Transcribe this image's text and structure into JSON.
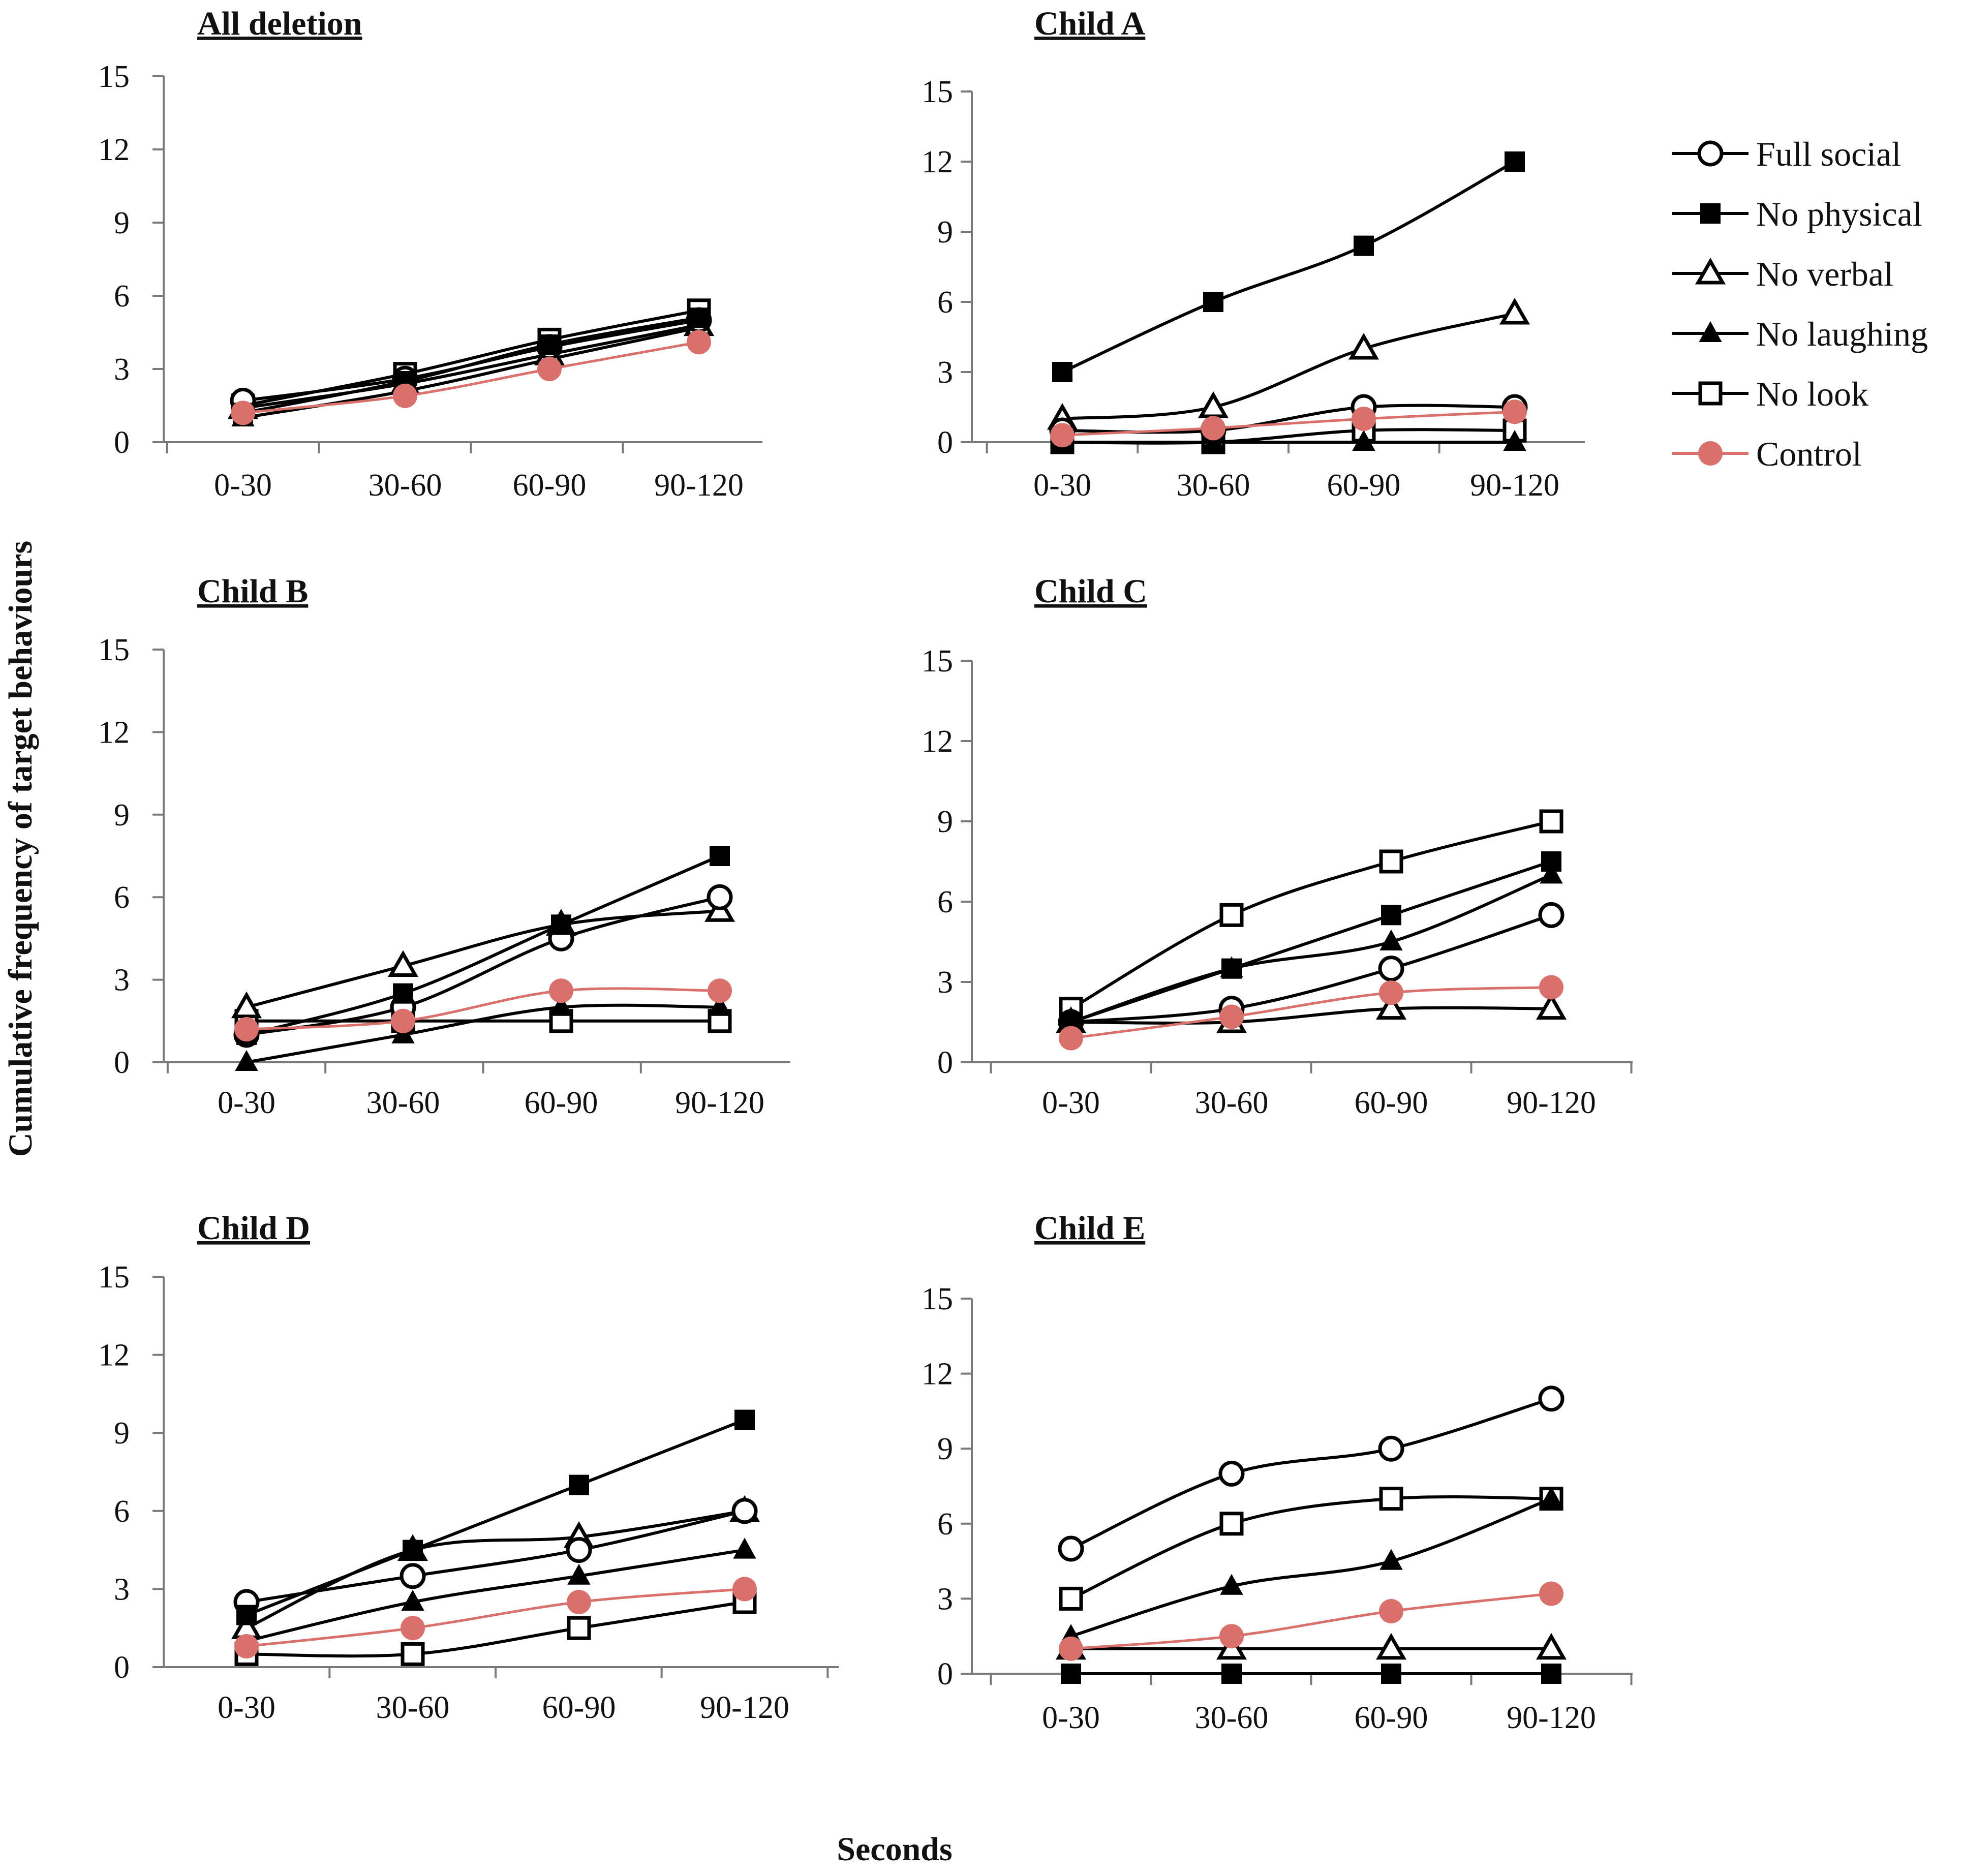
{
  "figure": {
    "ylabel": "Cumulative frequency of target behaviours",
    "xlabel": "Seconds"
  },
  "legend": [
    {
      "name": "Full social",
      "marker": "circle-open",
      "color": "#000000"
    },
    {
      "name": "No physical",
      "marker": "square-filled",
      "color": "#000000"
    },
    {
      "name": "No verbal",
      "marker": "triangle-open",
      "color": "#000000"
    },
    {
      "name": "No laughing",
      "marker": "triangle-filled",
      "color": "#000000"
    },
    {
      "name": "No look",
      "marker": "square-open",
      "color": "#000000"
    },
    {
      "name": "Control",
      "marker": "circle-filled",
      "color": "#d9706c"
    }
  ],
  "colors": {
    "line": "#000000",
    "control": "#d9706c",
    "axis": "#7a7a7a"
  },
  "chart_data": [
    {
      "type": "line",
      "title": "All deletion",
      "categories": [
        "0-30",
        "30-60",
        "60-90",
        "90-120"
      ],
      "yticks": [
        "0",
        "3",
        "6",
        "9",
        "12",
        "15"
      ],
      "ylim": [
        0,
        15
      ],
      "series": [
        {
          "name": "Full social",
          "values": [
            1.7,
            2.6,
            3.9,
            5.0
          ]
        },
        {
          "name": "No physical",
          "values": [
            1.2,
            2.5,
            4.0,
            5.1
          ]
        },
        {
          "name": "No verbal",
          "values": [
            1.4,
            2.4,
            3.6,
            4.8
          ]
        },
        {
          "name": "No laughing",
          "values": [
            1.0,
            2.1,
            3.4,
            4.7
          ]
        },
        {
          "name": "No look",
          "values": [
            1.5,
            2.8,
            4.2,
            5.4
          ]
        },
        {
          "name": "Control",
          "values": [
            1.2,
            1.9,
            3.0,
            4.1
          ]
        }
      ]
    },
    {
      "type": "line",
      "title": "Child A",
      "categories": [
        "0-30",
        "30-60",
        "60-90",
        "90-120"
      ],
      "yticks": [
        "0",
        "3",
        "6",
        "9",
        "12",
        "15"
      ],
      "ylim": [
        0,
        15
      ],
      "series": [
        {
          "name": "Full social",
          "values": [
            0.5,
            0.5,
            1.5,
            1.5
          ]
        },
        {
          "name": "No physical",
          "values": [
            3.0,
            6.0,
            8.4,
            12.0
          ]
        },
        {
          "name": "No verbal",
          "values": [
            1.0,
            1.5,
            4.0,
            5.5
          ]
        },
        {
          "name": "No laughing",
          "values": [
            0.0,
            0.0,
            0.0,
            0.0
          ]
        },
        {
          "name": "No look",
          "values": [
            0.0,
            0.0,
            0.5,
            0.5
          ]
        },
        {
          "name": "Control",
          "values": [
            0.3,
            0.6,
            1.0,
            1.3
          ]
        }
      ]
    },
    {
      "type": "line",
      "title": "Child B",
      "categories": [
        "0-30",
        "30-60",
        "60-90",
        "90-120"
      ],
      "yticks": [
        "0",
        "3",
        "6",
        "9",
        "12",
        "15"
      ],
      "ylim": [
        0,
        15
      ],
      "series": [
        {
          "name": "Full social",
          "values": [
            1.0,
            2.0,
            4.5,
            6.0
          ]
        },
        {
          "name": "No physical",
          "values": [
            1.0,
            2.5,
            5.0,
            7.5
          ]
        },
        {
          "name": "No verbal",
          "values": [
            2.0,
            3.5,
            5.0,
            5.5
          ]
        },
        {
          "name": "No laughing",
          "values": [
            0.0,
            1.0,
            2.0,
            2.0
          ]
        },
        {
          "name": "No look",
          "values": [
            1.5,
            1.5,
            1.5,
            1.5
          ]
        },
        {
          "name": "Control",
          "values": [
            1.2,
            1.5,
            2.6,
            2.6
          ]
        }
      ]
    },
    {
      "type": "line",
      "title": "Child C",
      "categories": [
        "0-30",
        "30-60",
        "60-90",
        "90-120"
      ],
      "yticks": [
        "0",
        "3",
        "6",
        "9",
        "12",
        "15"
      ],
      "ylim": [
        0,
        15
      ],
      "series": [
        {
          "name": "Full social",
          "values": [
            1.5,
            2.0,
            3.5,
            5.5
          ]
        },
        {
          "name": "No physical",
          "values": [
            1.5,
            3.5,
            5.5,
            7.5
          ]
        },
        {
          "name": "No verbal",
          "values": [
            1.5,
            1.5,
            2.0,
            2.0
          ]
        },
        {
          "name": "No laughing",
          "values": [
            1.5,
            3.5,
            4.5,
            7.0
          ]
        },
        {
          "name": "No look",
          "values": [
            2.0,
            5.5,
            7.5,
            9.0
          ]
        },
        {
          "name": "Control",
          "values": [
            0.9,
            1.7,
            2.6,
            2.8
          ]
        }
      ]
    },
    {
      "type": "line",
      "title": "Child D",
      "categories": [
        "0-30",
        "30-60",
        "60-90",
        "90-120"
      ],
      "yticks": [
        "0",
        "3",
        "6",
        "9",
        "12",
        "15"
      ],
      "ylim": [
        0,
        15
      ],
      "series": [
        {
          "name": "Full social",
          "values": [
            2.5,
            3.5,
            4.5,
            6.0
          ]
        },
        {
          "name": "No physical",
          "values": [
            2.0,
            4.5,
            7.0,
            9.5
          ]
        },
        {
          "name": "No verbal",
          "values": [
            1.5,
            4.5,
            5.0,
            6.0
          ]
        },
        {
          "name": "No laughing",
          "values": [
            1.0,
            2.5,
            3.5,
            4.5
          ]
        },
        {
          "name": "No look",
          "values": [
            0.5,
            0.5,
            1.5,
            2.5
          ]
        },
        {
          "name": "Control",
          "values": [
            0.8,
            1.5,
            2.5,
            3.0
          ]
        }
      ]
    },
    {
      "type": "line",
      "title": "Child E",
      "categories": [
        "0-30",
        "30-60",
        "60-90",
        "90-120"
      ],
      "yticks": [
        "0",
        "3",
        "6",
        "9",
        "12",
        "15"
      ],
      "ylim": [
        0,
        15
      ],
      "series": [
        {
          "name": "Full social",
          "values": [
            5.0,
            8.0,
            9.0,
            11.0
          ]
        },
        {
          "name": "No physical",
          "values": [
            0.0,
            0.0,
            0.0,
            0.0
          ]
        },
        {
          "name": "No verbal",
          "values": [
            1.0,
            1.0,
            1.0,
            1.0
          ]
        },
        {
          "name": "No laughing",
          "values": [
            1.5,
            3.5,
            4.5,
            7.0
          ]
        },
        {
          "name": "No look",
          "values": [
            3.0,
            6.0,
            7.0,
            7.0
          ]
        },
        {
          "name": "Control",
          "values": [
            1.0,
            1.5,
            2.5,
            3.2
          ]
        }
      ]
    }
  ]
}
